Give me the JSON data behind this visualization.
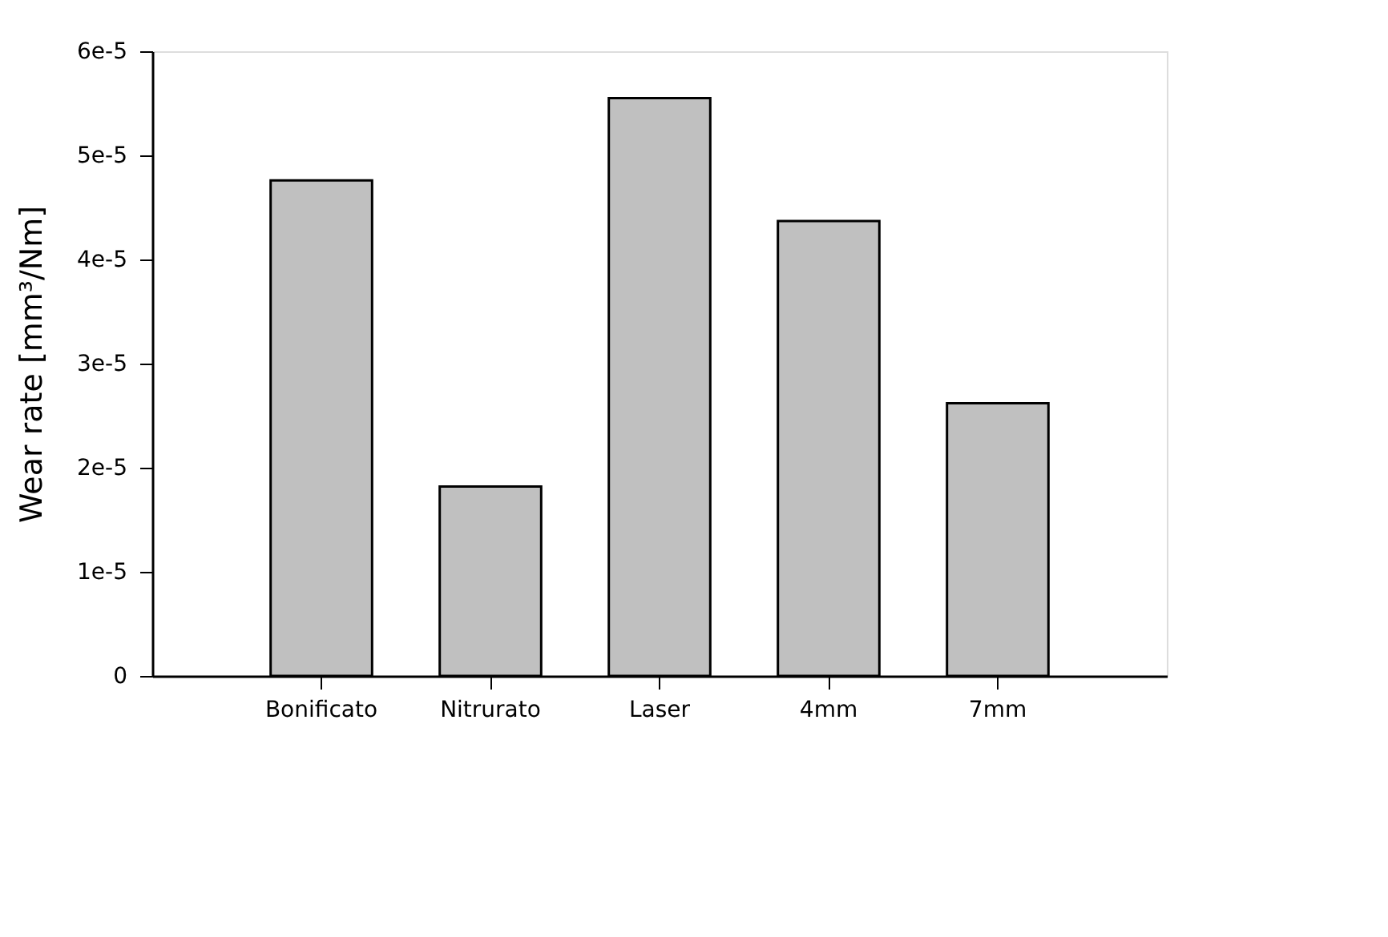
{
  "chart_data": {
    "type": "bar",
    "ylabel": "Wear rate [mm³/Nm]",
    "categories": [
      "Bonificato",
      "Nitrurato",
      "Laser",
      "4mm",
      "7mm"
    ],
    "values": [
      4.76e-05,
      1.82e-05,
      5.55e-05,
      4.37e-05,
      2.62e-05
    ],
    "color": "#c0c0c0",
    "ylim": [
      0,
      6e-05
    ],
    "yticks": [
      {
        "value": 0,
        "label": "0"
      },
      {
        "value": 1e-05,
        "label": "1e-5"
      },
      {
        "value": 2e-05,
        "label": "2e-5"
      },
      {
        "value": 3e-05,
        "label": "3e-5"
      },
      {
        "value": 4e-05,
        "label": "4e-5"
      },
      {
        "value": 5e-05,
        "label": "5e-5"
      },
      {
        "value": 6e-05,
        "label": "6e-5"
      }
    ],
    "grid": false
  }
}
